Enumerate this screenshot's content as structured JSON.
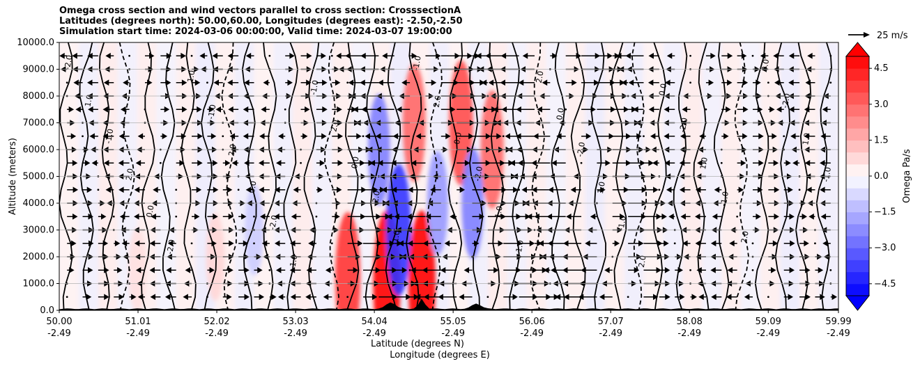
{
  "chart_data": {
    "type": "heatmap",
    "title_lines": [
      "Omega cross section and wind vectors parallel to cross section: CrosssectionA",
      "Latitudes (degrees north): 50.00,60.00, Longitudes (degrees east): -2.50,-2.50",
      "Simulation start time: 2024-03-06 00:00:00, Valid time: 2024-03-07 19:00:00"
    ],
    "xlabel_lat": "Latitude (degrees N)",
    "xlabel_lon": "Longitude (degrees E)",
    "ylabel": "Altitude (meters)",
    "x_range": [
      50.0,
      59.99
    ],
    "ylim": [
      0,
      10000
    ],
    "x_ticks": [
      {
        "lat": "50.00",
        "lon": "-2.49"
      },
      {
        "lat": "51.01",
        "lon": "-2.49"
      },
      {
        "lat": "52.02",
        "lon": "-2.49"
      },
      {
        "lat": "53.03",
        "lon": "-2.49"
      },
      {
        "lat": "54.04",
        "lon": "-2.49"
      },
      {
        "lat": "55.05",
        "lon": "-2.49"
      },
      {
        "lat": "56.06",
        "lon": "-2.49"
      },
      {
        "lat": "57.07",
        "lon": "-2.49"
      },
      {
        "lat": "58.08",
        "lon": "-2.49"
      },
      {
        "lat": "59.09",
        "lon": "-2.49"
      },
      {
        "lat": "59.99",
        "lon": "-2.49"
      }
    ],
    "y_ticks": [
      "0.0",
      "1000.0",
      "2000.0",
      "3000.0",
      "4000.0",
      "5000.0",
      "6000.0",
      "7000.0",
      "8000.0",
      "9000.0",
      "10000.0"
    ],
    "colorbar": {
      "label": "Omega Pa/s",
      "range": [
        -5.0,
        5.0
      ],
      "tick_values": [
        -4.5,
        -3.0,
        -1.5,
        0.0,
        1.5,
        3.0,
        4.5
      ],
      "tick_labels": [
        "−4.5",
        "−3.0",
        "−1.5",
        "0.0",
        "1.5",
        "3.0",
        "4.5"
      ],
      "negative_color": "#0000ff",
      "positive_color": "#ff0000"
    },
    "vector_key": {
      "label": "25 m/s",
      "speed": 25
    },
    "contour_levels": [
      -2.0,
      -1.0,
      0.0,
      1.0,
      2.0
    ],
    "omega_features": [
      {
        "lat": 51.0,
        "alt": 1500,
        "value": 0.6
      },
      {
        "lat": 52.0,
        "alt": 2000,
        "value": 0.8
      },
      {
        "lat": 52.5,
        "alt": 3000,
        "value": -1.0
      },
      {
        "lat": 53.7,
        "alt": 1200,
        "value": 4.0
      },
      {
        "lat": 54.1,
        "alt": 6000,
        "value": -2.5
      },
      {
        "lat": 54.2,
        "alt": 1000,
        "value": 5.0
      },
      {
        "lat": 54.35,
        "alt": 3000,
        "value": -4.0
      },
      {
        "lat": 54.55,
        "alt": 7000,
        "value": 3.0
      },
      {
        "lat": 54.65,
        "alt": 1000,
        "value": 5.0
      },
      {
        "lat": 54.85,
        "alt": 4000,
        "value": -2.0
      },
      {
        "lat": 55.15,
        "alt": 7000,
        "value": 3.5
      },
      {
        "lat": 55.3,
        "alt": 4000,
        "value": -2.5
      },
      {
        "lat": 55.55,
        "alt": 6000,
        "value": 3.0
      }
    ]
  }
}
